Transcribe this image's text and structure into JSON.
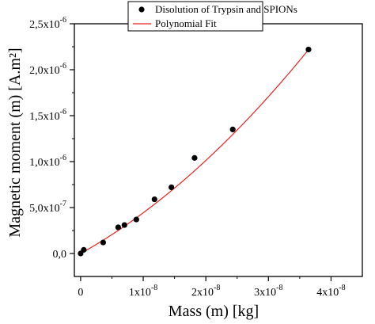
{
  "chart_data": {
    "type": "scatter",
    "title": "",
    "xlabel": "Mass (m) [kg]",
    "ylabel": "Magnetic moment (m) [A.m²]",
    "xlim": [
      -1e-09,
      4.5e-08
    ],
    "ylim": [
      -2.5e-07,
      2.5e-06
    ],
    "grid": false,
    "legend": {
      "placement": "top-center",
      "entries": [
        {
          "label": "Disolution of Trypsin and SPIONs",
          "marker": "circle",
          "color": "#000000"
        },
        {
          "label": "Polynomial Fit",
          "marker": "line",
          "color": "#e8211e"
        }
      ]
    },
    "x_ticks": [
      {
        "value": 0,
        "label": "0",
        "exp": ""
      },
      {
        "value": 1e-08,
        "label": "1x10",
        "exp": "-8"
      },
      {
        "value": 2e-08,
        "label": "2x10",
        "exp": "-8"
      },
      {
        "value": 3e-08,
        "label": "3x10",
        "exp": "-8"
      },
      {
        "value": 4e-08,
        "label": "4x10",
        "exp": "-8"
      }
    ],
    "y_ticks": [
      {
        "value": 0,
        "label": "0,0",
        "exp": ""
      },
      {
        "value": 5e-07,
        "label": "5,0x10",
        "exp": "-7"
      },
      {
        "value": 1e-06,
        "label": "1,0x10",
        "exp": "-6"
      },
      {
        "value": 1.5e-06,
        "label": "1,5x10",
        "exp": "-6"
      },
      {
        "value": 2e-06,
        "label": "2,0x10",
        "exp": "-6"
      },
      {
        "value": 2.5e-06,
        "label": "2,5x10",
        "exp": "-6"
      }
    ],
    "series": [
      {
        "name": "Disolution of Trypsin and SPIONs",
        "color": "#000000",
        "points": [
          {
            "x": 0.0,
            "y": 0.0
          },
          {
            "x": 5e-10,
            "y": 4e-08
          },
          {
            "x": 3.6e-09,
            "y": 1.2e-07
          },
          {
            "x": 6e-09,
            "y": 2.85e-07
          },
          {
            "x": 7e-09,
            "y": 3.1e-07
          },
          {
            "x": 8.9e-09,
            "y": 3.7e-07
          },
          {
            "x": 1.18e-08,
            "y": 5.9e-07
          },
          {
            "x": 1.45e-08,
            "y": 7.2e-07
          },
          {
            "x": 1.82e-08,
            "y": 1.04e-06
          },
          {
            "x": 2.43e-08,
            "y": 1.35e-06
          },
          {
            "x": 3.64e-08,
            "y": 2.22e-06
          }
        ]
      },
      {
        "name": "Polynomial Fit",
        "color": "#e8211e",
        "fit": {
          "form": "polynomial",
          "coefficients": [
            0.0,
            38.0,
            630000000.0
          ],
          "x_range": [
            0.0,
            3.64e-08
          ]
        }
      }
    ]
  }
}
